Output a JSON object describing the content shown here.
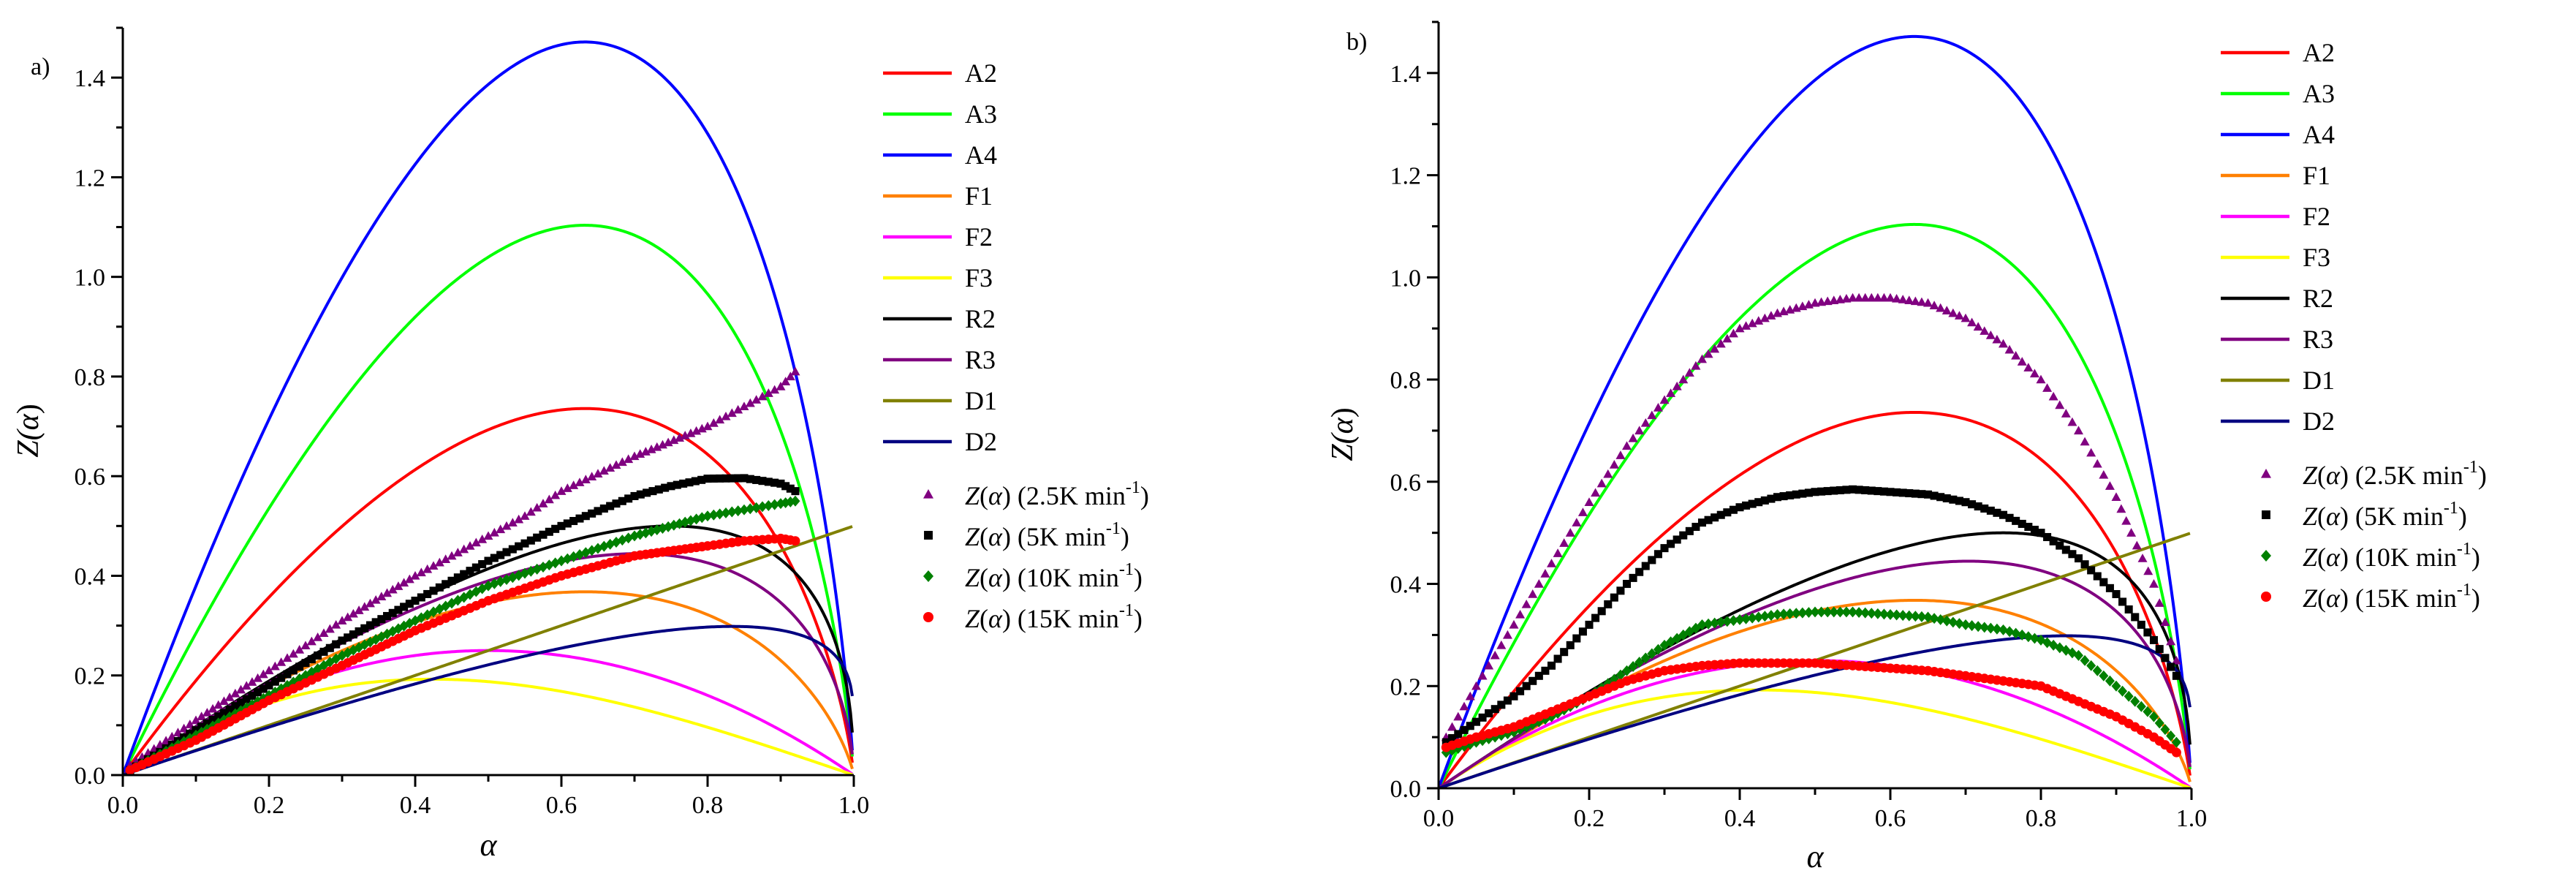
{
  "figure": {
    "panels": [
      {
        "label": "a)",
        "xlabel": "α",
        "ylabel_prefix": "Z(",
        "ylabel_var": "α",
        "ylabel_suffix": ")",
        "xticks": [
          "0.0",
          "0.2",
          "0.4",
          "0.6",
          "0.8",
          "1.0"
        ],
        "yticks": [
          "0.0",
          "0.2",
          "0.4",
          "0.6",
          "0.8",
          "1.0",
          "1.2",
          "1.4"
        ]
      },
      {
        "label": "b)",
        "xlabel": "α",
        "ylabel_prefix": "Z(",
        "ylabel_var": "α",
        "ylabel_suffix": ")",
        "xticks": [
          "0.0",
          "0.2",
          "0.4",
          "0.6",
          "0.8",
          "1.0"
        ],
        "yticks": [
          "0.0",
          "0.2",
          "0.4",
          "0.6",
          "0.8",
          "1.0",
          "1.2",
          "1.4"
        ]
      }
    ],
    "legend": {
      "models": [
        {
          "name": "A2",
          "color": "#ff0000"
        },
        {
          "name": "A3",
          "color": "#00ff00"
        },
        {
          "name": "A4",
          "color": "#0000ff"
        },
        {
          "name": "F1",
          "color": "#ff8000"
        },
        {
          "name": "F2",
          "color": "#ff00ff"
        },
        {
          "name": "F3",
          "color": "#ffff00"
        },
        {
          "name": "R2",
          "color": "#000000"
        },
        {
          "name": "R3",
          "color": "#800080"
        },
        {
          "name": "D1",
          "color": "#808000"
        },
        {
          "name": "D2",
          "color": "#000080"
        }
      ],
      "experimental": [
        {
          "rate": "2.5",
          "unit": "K min",
          "exp": "-1",
          "marker": "triangle",
          "color": "#800080"
        },
        {
          "rate": "5",
          "unit": "K min",
          "exp": "-1",
          "marker": "square",
          "color": "#000000"
        },
        {
          "rate": "10",
          "unit": "K min",
          "exp": "-1",
          "marker": "diamond",
          "color": "#008000"
        },
        {
          "rate": "15",
          "unit": "K min",
          "exp": "-1",
          "marker": "circle",
          "color": "#ff0000"
        }
      ],
      "z_label": "Z",
      "alpha_label": "α"
    }
  },
  "chart_data": [
    {
      "type": "line+scatter",
      "panel": "a)",
      "title": "",
      "xlabel": "α",
      "ylabel": "Z(α)",
      "xlim": [
        0,
        1
      ],
      "ylim": [
        0,
        1.5
      ],
      "model_curves": [
        "A2",
        "A3",
        "A4",
        "F1",
        "F2",
        "F3",
        "R2",
        "R3",
        "D1",
        "D2"
      ],
      "series": [
        {
          "name": "Z(α) (2.5K min-1)",
          "x": [
            0.01,
            0.1,
            0.2,
            0.3,
            0.4,
            0.5,
            0.55,
            0.6,
            0.7,
            0.8,
            0.9,
            0.92
          ],
          "y": [
            0.02,
            0.11,
            0.21,
            0.31,
            0.4,
            0.48,
            0.52,
            0.57,
            0.64,
            0.7,
            0.78,
            0.81
          ]
        },
        {
          "name": "Z(α) (5K min-1)",
          "x": [
            0.01,
            0.1,
            0.2,
            0.3,
            0.4,
            0.5,
            0.6,
            0.7,
            0.75,
            0.8,
            0.85,
            0.9,
            0.92
          ],
          "y": [
            0.01,
            0.09,
            0.18,
            0.27,
            0.35,
            0.43,
            0.5,
            0.56,
            0.58,
            0.595,
            0.596,
            0.585,
            0.57
          ]
        },
        {
          "name": "Z(α) (10K min-1)",
          "x": [
            0.01,
            0.1,
            0.2,
            0.3,
            0.4,
            0.5,
            0.6,
            0.7,
            0.8,
            0.9,
            0.92
          ],
          "y": [
            0.01,
            0.08,
            0.16,
            0.24,
            0.31,
            0.38,
            0.43,
            0.48,
            0.52,
            0.545,
            0.55
          ]
        },
        {
          "name": "Z(α) (15K min-1)",
          "x": [
            0.01,
            0.1,
            0.2,
            0.3,
            0.4,
            0.5,
            0.6,
            0.7,
            0.8,
            0.85,
            0.9,
            0.92
          ],
          "y": [
            0.01,
            0.07,
            0.15,
            0.22,
            0.29,
            0.35,
            0.4,
            0.44,
            0.46,
            0.47,
            0.475,
            0.47
          ]
        }
      ]
    },
    {
      "type": "line+scatter",
      "panel": "b)",
      "title": "",
      "xlabel": "α",
      "ylabel": "Z(α)",
      "xlim": [
        0,
        1
      ],
      "ylim": [
        0,
        1.5
      ],
      "model_curves": [
        "A2",
        "A3",
        "A4",
        "F1",
        "F2",
        "F3",
        "R2",
        "R3",
        "D1",
        "D2"
      ],
      "series": [
        {
          "name": "Z(α) (2.5K min-1)",
          "x": [
            0.01,
            0.05,
            0.1,
            0.15,
            0.2,
            0.25,
            0.3,
            0.35,
            0.4,
            0.45,
            0.5,
            0.55,
            0.6,
            0.65,
            0.7,
            0.75,
            0.8,
            0.85,
            0.9,
            0.92,
            0.95,
            0.98
          ],
          "y": [
            0.1,
            0.2,
            0.32,
            0.44,
            0.56,
            0.67,
            0.76,
            0.84,
            0.9,
            0.93,
            0.95,
            0.96,
            0.96,
            0.95,
            0.92,
            0.87,
            0.8,
            0.7,
            0.57,
            0.5,
            0.4,
            0.25
          ]
        },
        {
          "name": "Z(α) (5K min-1)",
          "x": [
            0.01,
            0.05,
            0.1,
            0.15,
            0.2,
            0.25,
            0.3,
            0.35,
            0.4,
            0.45,
            0.5,
            0.55,
            0.6,
            0.65,
            0.7,
            0.75,
            0.8,
            0.85,
            0.9,
            0.95,
            0.98
          ],
          "y": [
            0.09,
            0.13,
            0.18,
            0.24,
            0.32,
            0.4,
            0.47,
            0.52,
            0.55,
            0.57,
            0.58,
            0.585,
            0.58,
            0.575,
            0.56,
            0.535,
            0.5,
            0.45,
            0.38,
            0.29,
            0.22
          ]
        },
        {
          "name": "Z(α) (10K min-1)",
          "x": [
            0.01,
            0.05,
            0.1,
            0.15,
            0.2,
            0.25,
            0.3,
            0.35,
            0.4,
            0.45,
            0.5,
            0.55,
            0.6,
            0.65,
            0.7,
            0.75,
            0.8,
            0.85,
            0.9,
            0.95,
            0.98
          ],
          "y": [
            0.07,
            0.09,
            0.11,
            0.14,
            0.18,
            0.23,
            0.28,
            0.32,
            0.33,
            0.34,
            0.345,
            0.345,
            0.34,
            0.335,
            0.32,
            0.31,
            0.29,
            0.26,
            0.2,
            0.14,
            0.09
          ]
        },
        {
          "name": "Z(α) (15K min-1)",
          "x": [
            0.01,
            0.05,
            0.1,
            0.15,
            0.2,
            0.25,
            0.3,
            0.35,
            0.4,
            0.45,
            0.5,
            0.55,
            0.6,
            0.65,
            0.7,
            0.75,
            0.8,
            0.85,
            0.9,
            0.95,
            0.98
          ],
          "y": [
            0.08,
            0.1,
            0.12,
            0.15,
            0.18,
            0.21,
            0.23,
            0.24,
            0.245,
            0.245,
            0.245,
            0.24,
            0.235,
            0.23,
            0.22,
            0.21,
            0.2,
            0.17,
            0.14,
            0.1,
            0.07
          ]
        }
      ]
    }
  ]
}
